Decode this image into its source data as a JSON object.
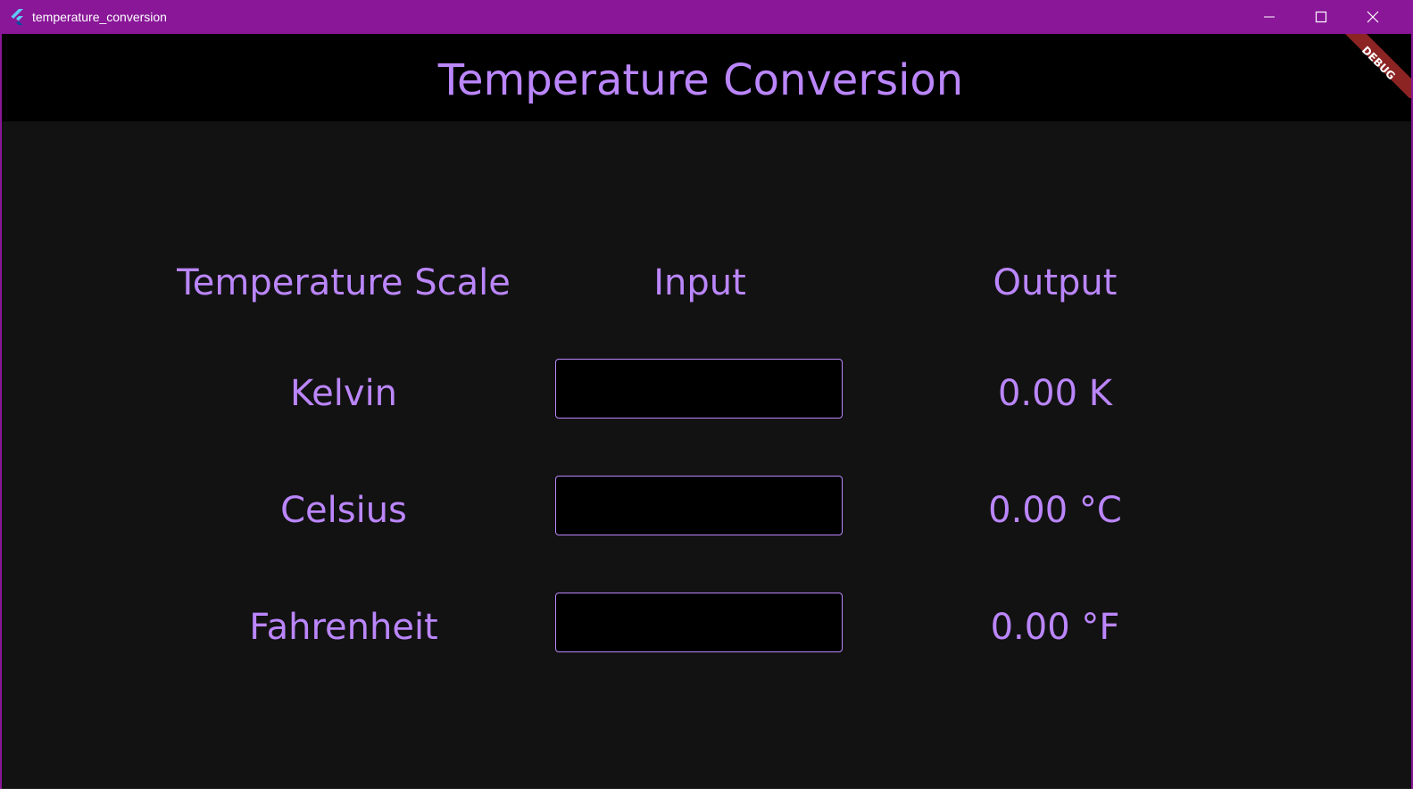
{
  "window": {
    "title": "temperature_conversion",
    "icon": "flutter-logo-icon",
    "controls": [
      "minimize-icon",
      "maximize-icon",
      "close-icon"
    ],
    "accent_color": "#891798"
  },
  "app": {
    "title": "Temperature Conversion",
    "debug_banner": "DEBUG",
    "theme": {
      "text_color": "#bb86fc",
      "background": "#121212",
      "appbar_background": "#000000"
    }
  },
  "table": {
    "headers": {
      "scale": "Temperature Scale",
      "input": "Input",
      "output": "Output"
    },
    "rows": [
      {
        "scale": "Kelvin",
        "input_value": "",
        "output": "0.00 K"
      },
      {
        "scale": "Celsius",
        "input_value": "",
        "output": "0.00 °C"
      },
      {
        "scale": "Fahrenheit",
        "input_value": "",
        "output": "0.00 °F"
      }
    ]
  }
}
